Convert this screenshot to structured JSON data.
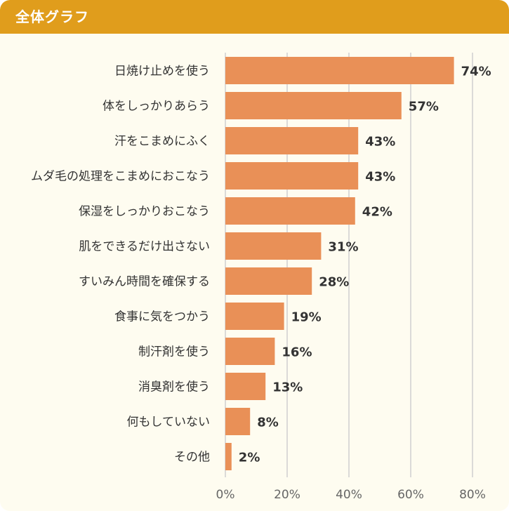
{
  "header": {
    "title": "全体グラフ"
  },
  "colors": {
    "header": "#e09d1c",
    "bar": "#e99057",
    "grid": "#cfcfcf",
    "background": "#fefcf0"
  },
  "chart_data": {
    "type": "bar",
    "orientation": "horizontal",
    "title": "",
    "xlabel": "",
    "ylabel": "",
    "xlim": [
      0,
      80
    ],
    "x_ticks": [
      0,
      20,
      40,
      60,
      80
    ],
    "x_tick_labels": [
      "0%",
      "20%",
      "40%",
      "60%",
      "80%"
    ],
    "grid": true,
    "categories": [
      "日焼け止めを使う",
      "体をしっかりあらう",
      "汗をこまめにふく",
      "ムダ毛の処理をこまめにおこなう",
      "保湿をしっかりおこなう",
      "肌をできるだけ出さない",
      "すいみん時間を確保する",
      "食事に気をつかう",
      "制汗剤を使う",
      "消臭剤を使う",
      "何もしていない",
      "その他"
    ],
    "values": [
      74,
      57,
      43,
      43,
      42,
      31,
      28,
      19,
      16,
      13,
      8,
      2
    ],
    "value_labels": [
      "74%",
      "57%",
      "43%",
      "43%",
      "42%",
      "31%",
      "28%",
      "19%",
      "16%",
      "13%",
      "8%",
      "2%"
    ]
  }
}
